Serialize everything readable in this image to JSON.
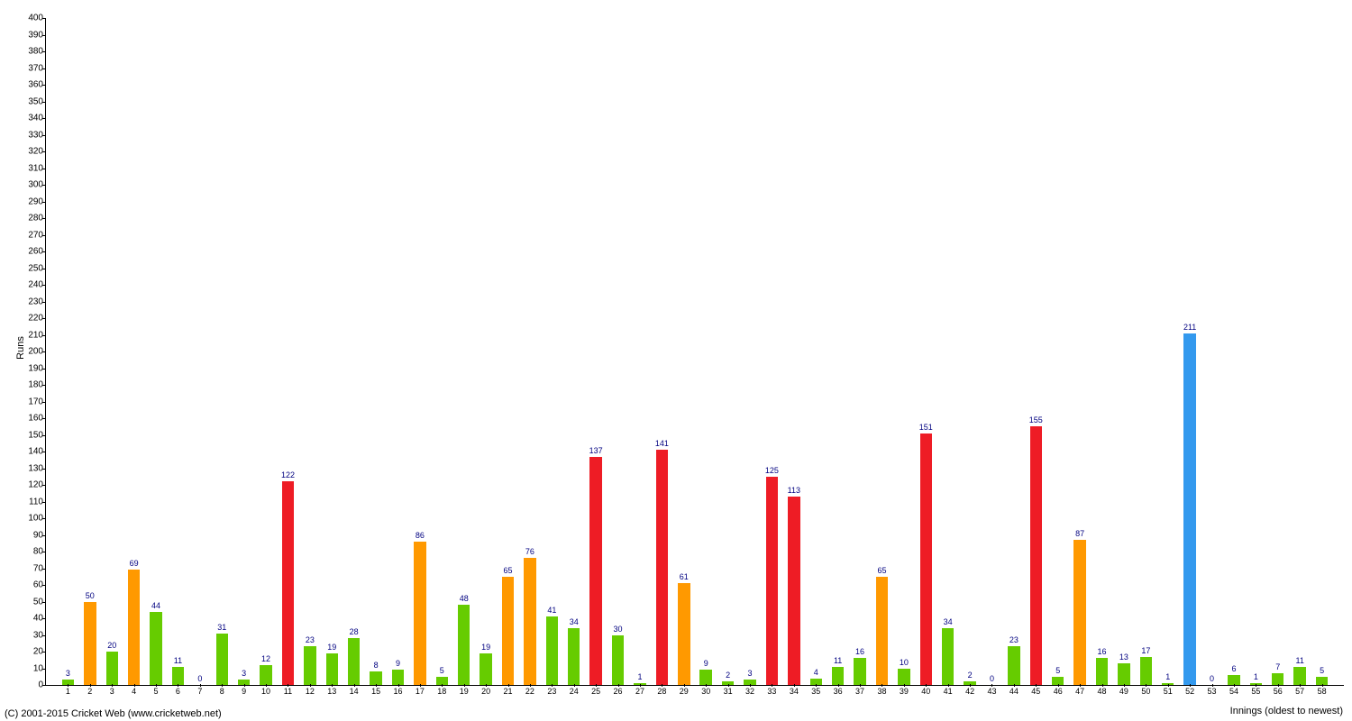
{
  "chart": {
    "type": "bar",
    "ylabel": "Runs",
    "xlabel": "Innings (oldest to newest)",
    "copyright": "(C) 2001-2015 Cricket Web (www.cricketweb.net)",
    "ylim": [
      0,
      400
    ],
    "ytick_step": 10,
    "background_color": "#ffffff",
    "label_fontsize": 11,
    "tick_fontsize": 10,
    "value_label_fontsize": 9,
    "value_label_color": "#000080",
    "bar_width_ratio": 0.55,
    "colors": {
      "green": "#66cc00",
      "orange": "#ff9900",
      "red": "#ee1c25",
      "blue": "#3399ee"
    },
    "data": [
      {
        "x": 1,
        "value": 3,
        "color": "green"
      },
      {
        "x": 2,
        "value": 50,
        "color": "orange"
      },
      {
        "x": 3,
        "value": 20,
        "color": "green"
      },
      {
        "x": 4,
        "value": 69,
        "color": "orange"
      },
      {
        "x": 5,
        "value": 44,
        "color": "green"
      },
      {
        "x": 6,
        "value": 11,
        "color": "green"
      },
      {
        "x": 7,
        "value": 0,
        "color": "green"
      },
      {
        "x": 8,
        "value": 31,
        "color": "green"
      },
      {
        "x": 9,
        "value": 3,
        "color": "green"
      },
      {
        "x": 10,
        "value": 12,
        "color": "green"
      },
      {
        "x": 11,
        "value": 122,
        "color": "red"
      },
      {
        "x": 12,
        "value": 23,
        "color": "green"
      },
      {
        "x": 13,
        "value": 19,
        "color": "green"
      },
      {
        "x": 14,
        "value": 28,
        "color": "green"
      },
      {
        "x": 15,
        "value": 8,
        "color": "green"
      },
      {
        "x": 16,
        "value": 9,
        "color": "green"
      },
      {
        "x": 17,
        "value": 86,
        "color": "orange"
      },
      {
        "x": 18,
        "value": 5,
        "color": "green"
      },
      {
        "x": 19,
        "value": 48,
        "color": "green"
      },
      {
        "x": 20,
        "value": 19,
        "color": "green"
      },
      {
        "x": 21,
        "value": 65,
        "color": "orange"
      },
      {
        "x": 22,
        "value": 76,
        "color": "orange"
      },
      {
        "x": 23,
        "value": 41,
        "color": "green"
      },
      {
        "x": 24,
        "value": 34,
        "color": "green"
      },
      {
        "x": 25,
        "value": 137,
        "color": "red"
      },
      {
        "x": 26,
        "value": 30,
        "color": "green"
      },
      {
        "x": 27,
        "value": 1,
        "color": "green"
      },
      {
        "x": 28,
        "value": 141,
        "color": "red"
      },
      {
        "x": 29,
        "value": 61,
        "color": "orange"
      },
      {
        "x": 30,
        "value": 9,
        "color": "green"
      },
      {
        "x": 31,
        "value": 2,
        "color": "green"
      },
      {
        "x": 32,
        "value": 3,
        "color": "green"
      },
      {
        "x": 33,
        "value": 125,
        "color": "red"
      },
      {
        "x": 34,
        "value": 113,
        "color": "red"
      },
      {
        "x": 35,
        "value": 4,
        "color": "green"
      },
      {
        "x": 36,
        "value": 11,
        "color": "green"
      },
      {
        "x": 37,
        "value": 16,
        "color": "green"
      },
      {
        "x": 38,
        "value": 65,
        "color": "orange"
      },
      {
        "x": 39,
        "value": 10,
        "color": "green"
      },
      {
        "x": 40,
        "value": 151,
        "color": "red"
      },
      {
        "x": 41,
        "value": 34,
        "color": "green"
      },
      {
        "x": 42,
        "value": 2,
        "color": "green"
      },
      {
        "x": 43,
        "value": 0,
        "color": "green"
      },
      {
        "x": 44,
        "value": 23,
        "color": "green"
      },
      {
        "x": 45,
        "value": 155,
        "color": "red"
      },
      {
        "x": 46,
        "value": 5,
        "color": "green"
      },
      {
        "x": 47,
        "value": 87,
        "color": "orange"
      },
      {
        "x": 48,
        "value": 16,
        "color": "green"
      },
      {
        "x": 49,
        "value": 13,
        "color": "green"
      },
      {
        "x": 50,
        "value": 17,
        "color": "green"
      },
      {
        "x": 51,
        "value": 1,
        "color": "green"
      },
      {
        "x": 52,
        "value": 211,
        "color": "blue"
      },
      {
        "x": 53,
        "value": 0,
        "color": "green"
      },
      {
        "x": 54,
        "value": 6,
        "color": "green"
      },
      {
        "x": 55,
        "value": 1,
        "color": "green"
      },
      {
        "x": 56,
        "value": 7,
        "color": "green"
      },
      {
        "x": 57,
        "value": 11,
        "color": "green"
      },
      {
        "x": 58,
        "value": 5,
        "color": "green"
      }
    ]
  }
}
